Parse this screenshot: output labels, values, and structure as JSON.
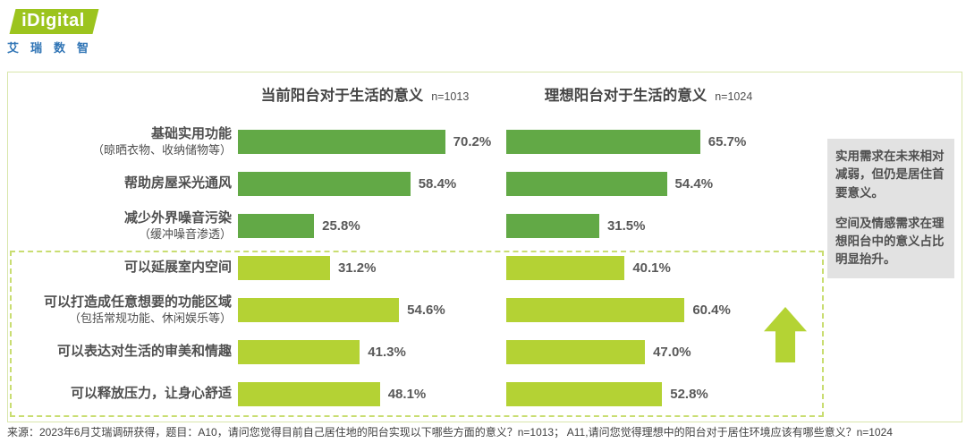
{
  "logo": {
    "brand": "iDigital",
    "subtitle": "艾瑞数智"
  },
  "chart_data": {
    "type": "bar",
    "orientation": "horizontal",
    "value_suffix": "%",
    "xlim": [
      0,
      100
    ],
    "grid": false,
    "legend": "none",
    "charts": [
      {
        "title": "当前阳台对于生活的意义",
        "n_label": "n=1013"
      },
      {
        "title": "理想阳台对于生活的意义",
        "n_label": "n=1024"
      }
    ],
    "categories": [
      {
        "label": "基础实用功能",
        "sublabel": "（晾晒衣物、收纳储物等）",
        "group": "practical"
      },
      {
        "label": "帮助房屋采光通风",
        "sublabel": "",
        "group": "practical"
      },
      {
        "label": "减少外界噪音污染",
        "sublabel": "（缓冲噪音渗透）",
        "group": "practical"
      },
      {
        "label": "可以延展室内空间",
        "sublabel": "",
        "group": "emotional"
      },
      {
        "label": "可以打造成任意想要的功能区域",
        "sublabel": "（包括常规功能、休闲娱乐等）",
        "group": "emotional"
      },
      {
        "label": "可以表达对生活的审美和情趣",
        "sublabel": "",
        "group": "emotional"
      },
      {
        "label": "可以释放压力，让身心舒适",
        "sublabel": "",
        "group": "emotional"
      }
    ],
    "series": [
      {
        "name": "当前阳台对于生活的意义",
        "n": 1013,
        "values": [
          70.2,
          58.4,
          25.8,
          31.2,
          54.6,
          41.3,
          48.1
        ]
      },
      {
        "name": "理想阳台对于生活的意义",
        "n": 1024,
        "values": [
          65.7,
          54.4,
          31.5,
          40.1,
          60.4,
          47.0,
          52.8
        ]
      }
    ],
    "colors": {
      "practical": "#62a946",
      "emotional": "#b4d234"
    },
    "highlight_group": "emotional"
  },
  "annotation": {
    "para1": "实用需求在未来相对减弱，但仍是居住首要意义。",
    "para2": "空间及情感需求在理想阳台中的意义占比明显抬升。"
  },
  "footer": {
    "source": "来源：2023年6月艾瑞调研获得，题目：A10，请问您觉得目前自己居住地的阳台实现以下哪些方面的意义？n=1013； A11,请问您觉得理想中的阳台对于居住环境应该有哪些意义？n=1024"
  }
}
